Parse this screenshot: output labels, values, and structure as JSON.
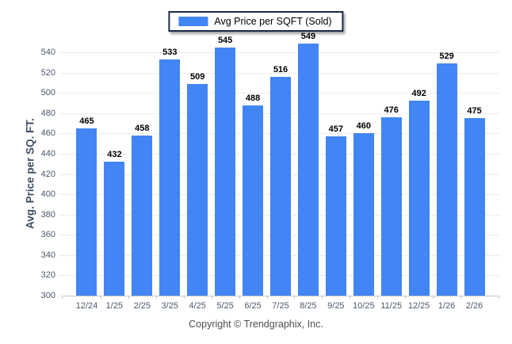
{
  "chart_data": {
    "type": "bar",
    "categories": [
      "12/24",
      "1/25",
      "2/25",
      "3/25",
      "4/25",
      "5/25",
      "6/25",
      "7/25",
      "8/25",
      "9/25",
      "10/25",
      "11/25",
      "12/25",
      "1/26",
      "2/26"
    ],
    "values": [
      465,
      432,
      458,
      533,
      509,
      545,
      488,
      516,
      549,
      457,
      460,
      476,
      492,
      529,
      475
    ],
    "legend": "Avg Price per SQFT (Sold)",
    "legend_position": "top-center",
    "title": "",
    "xlabel": "",
    "ylabel": "Avg. Price per SQ. FT.",
    "ylim": [
      300,
      540
    ],
    "ytick_step": 20,
    "grid": "horizontal",
    "bar_color": "#4285f4",
    "value_labels": "above-bars"
  },
  "footer": {
    "copyright": "Copyright © Trendgraphix, Inc."
  }
}
